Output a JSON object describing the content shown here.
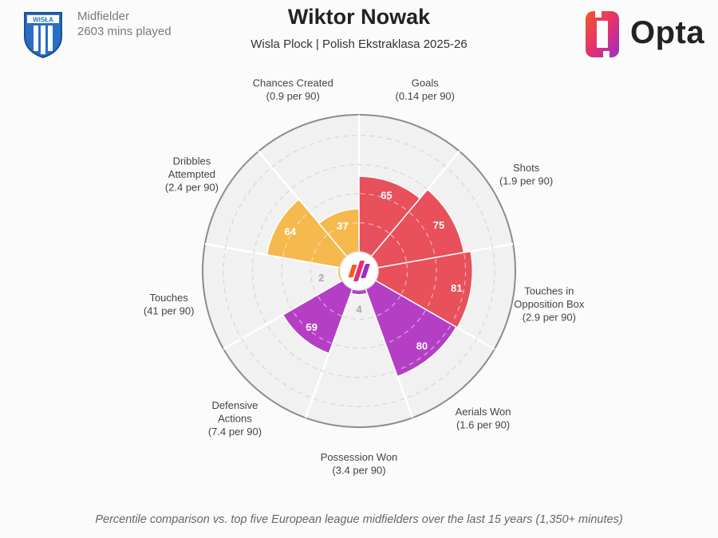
{
  "player": {
    "name": "Wiktor Nowak",
    "position": "Midfielder",
    "minutes": "2603 mins played",
    "team_competition": "Wisla Plock | Polish Ekstraklasa 2025-26",
    "badge_text": "WISŁA"
  },
  "brand": {
    "name": "Opta"
  },
  "footnote": "Percentile comparison vs. top five European league midfielders over the last 15 years (1,350+ minutes)",
  "colors": {
    "attacking": "#e8505b",
    "possession": "#f5b94e",
    "defending": "#b43fc4",
    "ring": "#8c8c8c",
    "grid": "#d6d6d6",
    "background_disc": "#f1f1f1"
  },
  "chart_data": {
    "type": "polar-bar",
    "title": "Wiktor Nowak",
    "subtitle": "Wisla Plock | Polish Ekstraklasa 2025-26",
    "rlim": [
      0,
      100
    ],
    "grid": true,
    "categories": [
      {
        "name": "Goals",
        "stat": "(0.14 per 90)",
        "value": 65,
        "group": "attacking"
      },
      {
        "name": "Shots",
        "stat": "(1.9 per 90)",
        "value": 75,
        "group": "attacking"
      },
      {
        "name": "Touches in|Opposition Box",
        "stat": "(2.9 per 90)",
        "value": 81,
        "group": "attacking"
      },
      {
        "name": "Aerials Won",
        "stat": "(1.6 per 90)",
        "value": 80,
        "group": "defending"
      },
      {
        "name": "Possession Won",
        "stat": "(3.4 per 90)",
        "value": 4,
        "group": "defending"
      },
      {
        "name": "Defensive|Actions",
        "stat": "(7.4 per 90)",
        "value": 59,
        "group": "defending"
      },
      {
        "name": "Touches",
        "stat": "(41 per 90)",
        "value": 2,
        "group": "possession"
      },
      {
        "name": "Dribbles|Attempted",
        "stat": "(2.4 per 90)",
        "value": 64,
        "group": "possession"
      },
      {
        "name": "Chances Created",
        "stat": "(0.9 per 90)",
        "value": 37,
        "group": "possession"
      }
    ]
  }
}
